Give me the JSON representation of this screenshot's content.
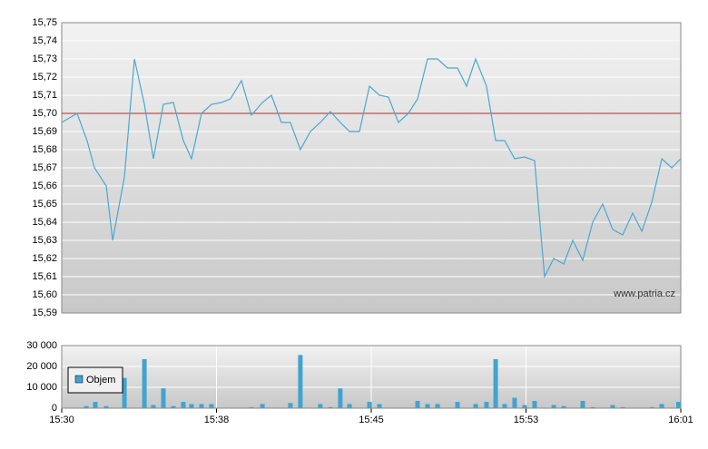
{
  "chart_data": [
    {
      "type": "line",
      "annotation": "www.patria.cz",
      "color": "#4aa8d0",
      "x": [
        930.0,
        930.77,
        931.27,
        931.64,
        932.23,
        932.55,
        933.14,
        933.64,
        934.14,
        934.59,
        935.09,
        935.59,
        936.09,
        936.5,
        937.0,
        937.5,
        938.0,
        938.45,
        939.0,
        939.5,
        940.05,
        940.5,
        941.0,
        941.45,
        941.95,
        942.45,
        942.95,
        943.45,
        943.95,
        944.41,
        944.91,
        945.41,
        945.91,
        946.36,
        946.86,
        947.36,
        947.82,
        948.32,
        948.82,
        949.32,
        949.82,
        950.27,
        950.73,
        951.27,
        951.73,
        952.18,
        952.68,
        953.18,
        953.68,
        954.18,
        954.64,
        955.14,
        955.59,
        956.09,
        956.59,
        957.09,
        957.59,
        958.09,
        958.59,
        959.05,
        959.55,
        960.05,
        960.55,
        961.0
      ],
      "values": [
        15.695,
        15.7,
        15.685,
        15.67,
        15.66,
        15.63,
        15.665,
        15.73,
        15.705,
        15.675,
        15.705,
        15.706,
        15.685,
        15.675,
        15.7,
        15.705,
        15.706,
        15.708,
        15.718,
        15.699,
        15.706,
        15.71,
        15.695,
        15.695,
        15.68,
        15.69,
        15.695,
        15.701,
        15.695,
        15.69,
        15.69,
        15.715,
        15.71,
        15.709,
        15.695,
        15.7,
        15.708,
        15.73,
        15.73,
        15.725,
        15.725,
        15.715,
        15.73,
        15.715,
        15.685,
        15.685,
        15.675,
        15.676,
        15.674,
        15.61,
        15.62,
        15.617,
        15.63,
        15.619,
        15.64,
        15.65,
        15.636,
        15.633,
        15.645,
        15.635,
        15.651,
        15.675,
        15.67,
        15.675
      ],
      "reference_line": {
        "value": 15.7,
        "color": "#cc2222"
      },
      "xlim": [
        930,
        961
      ],
      "ylim": [
        15.59,
        15.75
      ],
      "yticks": [
        {
          "value": 15.59,
          "label": "15,59"
        },
        {
          "value": 15.6,
          "label": "15,60"
        },
        {
          "value": 15.61,
          "label": "15,61"
        },
        {
          "value": 15.62,
          "label": "15,62"
        },
        {
          "value": 15.63,
          "label": "15,63"
        },
        {
          "value": 15.64,
          "label": "15,64"
        },
        {
          "value": 15.65,
          "label": "15,65"
        },
        {
          "value": 15.66,
          "label": "15,66"
        },
        {
          "value": 15.67,
          "label": "15,67"
        },
        {
          "value": 15.68,
          "label": "15,68"
        },
        {
          "value": 15.69,
          "label": "15,69"
        },
        {
          "value": 15.7,
          "label": "15,70"
        },
        {
          "value": 15.71,
          "label": "15,71"
        },
        {
          "value": 15.72,
          "label": "15,72"
        },
        {
          "value": 15.73,
          "label": "15,73"
        },
        {
          "value": 15.74,
          "label": "15,74"
        },
        {
          "value": 15.75,
          "label": "15,75"
        }
      ],
      "grid": true
    },
    {
      "type": "bar",
      "x": [
        931.23,
        931.68,
        932.23,
        933.14,
        934.14,
        934.59,
        935.09,
        935.59,
        936.09,
        936.5,
        937.0,
        937.5,
        939.5,
        940.05,
        941.45,
        941.95,
        942.95,
        943.45,
        943.95,
        944.41,
        945.41,
        945.91,
        947.82,
        948.32,
        948.82,
        949.82,
        950.73,
        951.27,
        951.73,
        952.18,
        952.68,
        953.18,
        953.68,
        954.64,
        955.14,
        956.09,
        956.59,
        957.59,
        958.09,
        959.55,
        960.05,
        961.0
      ],
      "series": [
        {
          "name": "Objem",
          "color": "#3fa4d0",
          "values": [
            1000,
            3000,
            1000,
            14500,
            23500,
            1500,
            9500,
            1000,
            3000,
            2000,
            2000,
            2000,
            500,
            2000,
            2500,
            25500,
            2000,
            500,
            9500,
            2000,
            3000,
            2000,
            3500,
            2000,
            2000,
            3000,
            2000,
            3000,
            23500,
            2000,
            5000,
            1500,
            3500,
            1500,
            1000,
            3500,
            500,
            1500,
            500,
            500,
            2000,
            3000
          ]
        }
      ],
      "legend": "bottom-left",
      "xlim": [
        930,
        961
      ],
      "xticks": [
        {
          "value": 930,
          "label": "15:30"
        },
        {
          "value": 937.75,
          "label": "15:38"
        },
        {
          "value": 945.5,
          "label": "15:45"
        },
        {
          "value": 953.25,
          "label": "15:53"
        },
        {
          "value": 961,
          "label": "16:01"
        }
      ],
      "ylim": [
        0,
        30000
      ],
      "yticks": [
        0,
        {
          "value": 10000,
          "label": "10 000"
        },
        {
          "value": 20000,
          "label": "20 000"
        },
        {
          "value": 30000,
          "label": "30 000"
        }
      ],
      "grid": true
    }
  ]
}
